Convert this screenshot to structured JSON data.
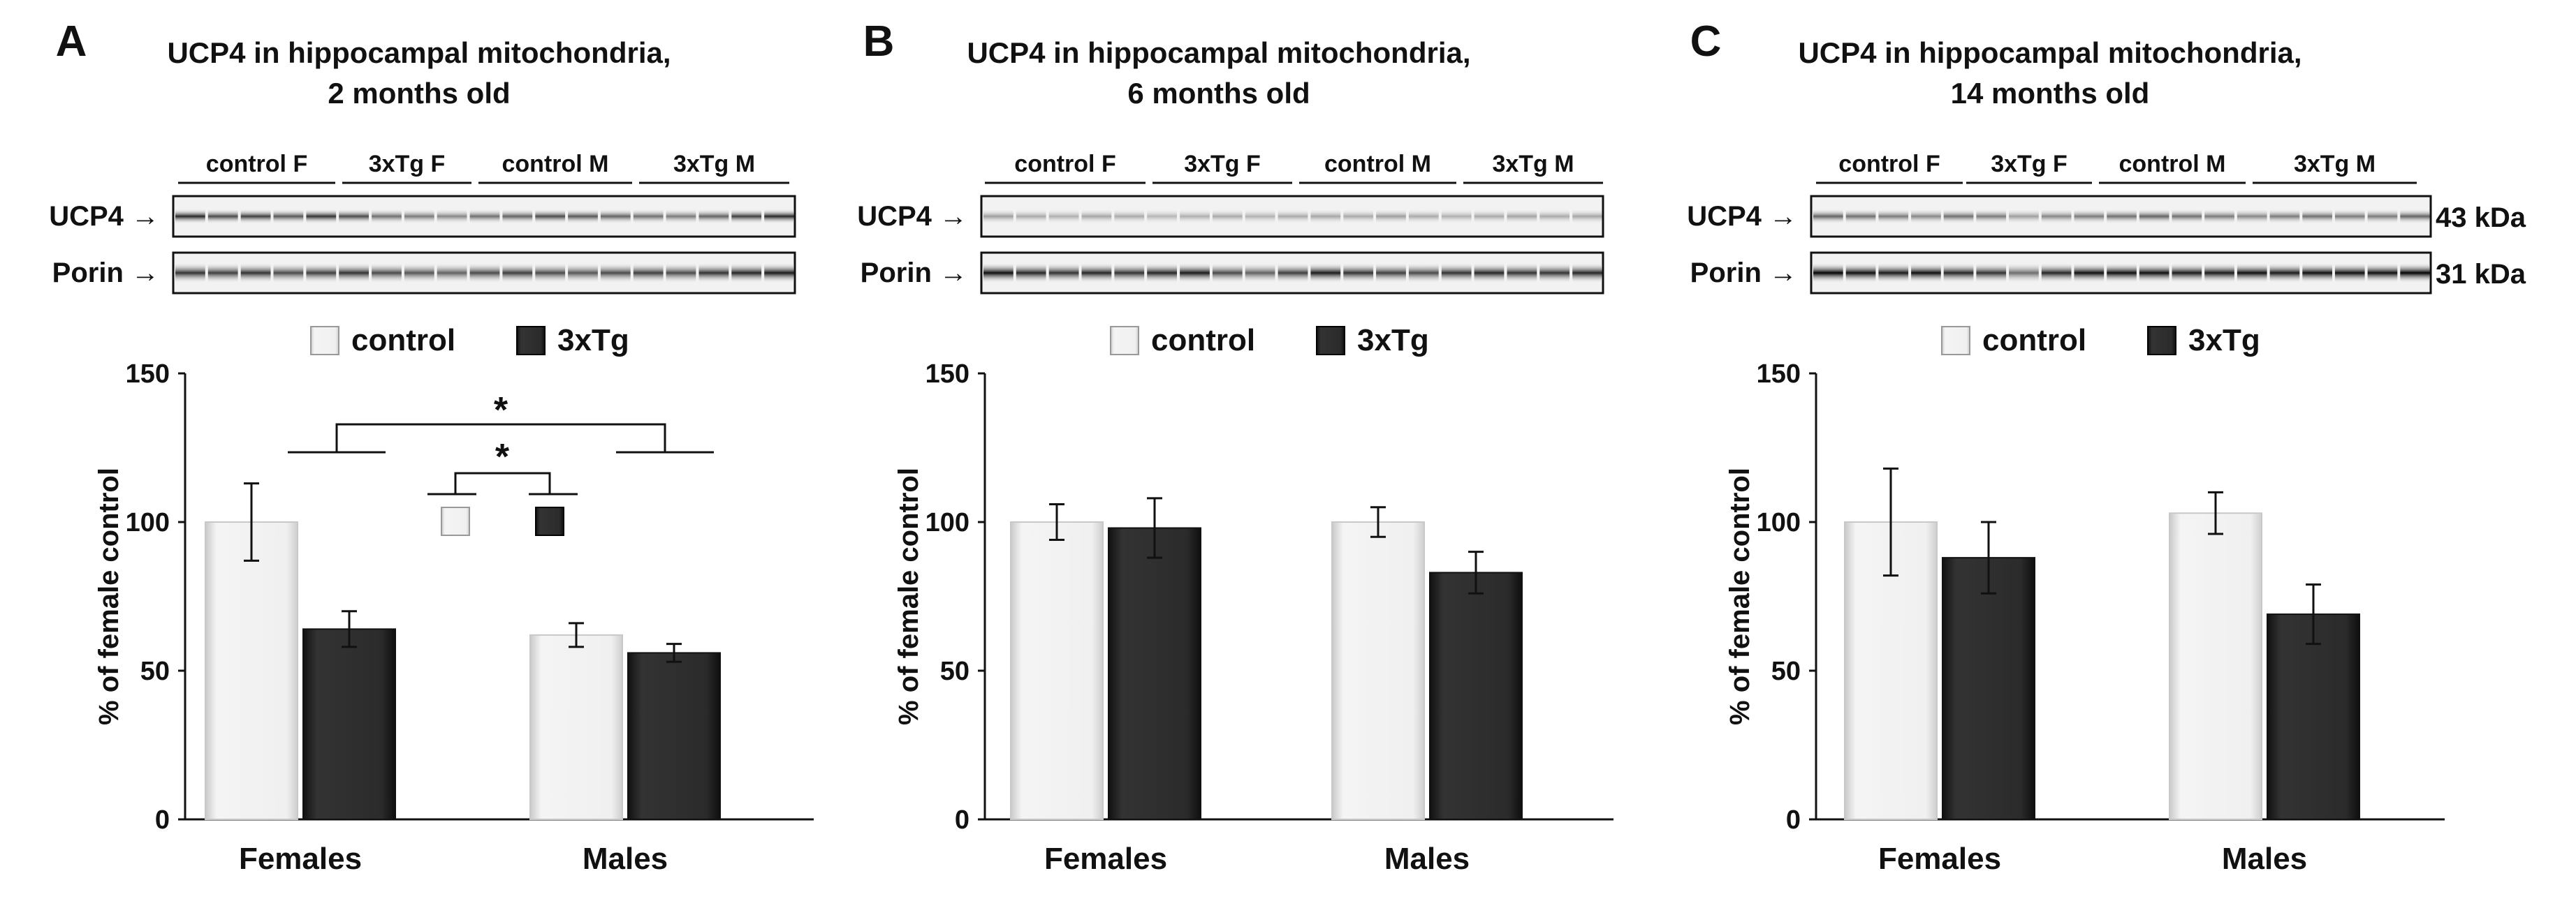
{
  "figure": {
    "blot": {
      "group_labels": [
        "control F",
        "3xTg F",
        "control M",
        "3xTg M"
      ],
      "row_labels": [
        {
          "name": "UCP4",
          "arrow": "→"
        },
        {
          "name": "Porin",
          "arrow": "→"
        }
      ],
      "kda_labels": [
        "43 kDa",
        "31 kDa"
      ]
    },
    "legend": {
      "control": "control",
      "tg": "3xTg"
    },
    "colors": {
      "control": "#e6e6e6",
      "tg": "#262626",
      "axis": "#111111",
      "band": "#222222"
    }
  },
  "chart_data": [
    {
      "type": "bar",
      "panel": "A",
      "title": [
        "UCP4 in hippocampal mitochondria,",
        "2 months old"
      ],
      "categories": [
        "Females",
        "Males"
      ],
      "series": [
        {
          "name": "control",
          "values": [
            100,
            62
          ],
          "errors": [
            13,
            4
          ]
        },
        {
          "name": "3xTg",
          "values": [
            64,
            56
          ],
          "errors": [
            6,
            3
          ]
        }
      ],
      "ylabel": "% of female control",
      "ylim": [
        0,
        150
      ],
      "yticks": [
        0,
        50,
        100,
        150
      ],
      "significance": [
        {
          "label": "*",
          "between": "Females vs Males"
        },
        {
          "label": "*",
          "between": "control vs 3xTg"
        }
      ]
    },
    {
      "type": "bar",
      "panel": "B",
      "title": [
        "UCP4 in hippocampal mitochondria,",
        "6 months old"
      ],
      "categories": [
        "Females",
        "Males"
      ],
      "series": [
        {
          "name": "control",
          "values": [
            100,
            100
          ],
          "errors": [
            6,
            5
          ]
        },
        {
          "name": "3xTg",
          "values": [
            98,
            83
          ],
          "errors": [
            10,
            7
          ]
        }
      ],
      "ylabel": "% of female control",
      "ylim": [
        0,
        150
      ],
      "yticks": [
        0,
        50,
        100,
        150
      ]
    },
    {
      "type": "bar",
      "panel": "C",
      "title": [
        "UCP4 in hippocampal mitochondria,",
        "14 months old"
      ],
      "categories": [
        "Females",
        "Males"
      ],
      "series": [
        {
          "name": "control",
          "values": [
            100,
            103
          ],
          "errors": [
            18,
            7
          ]
        },
        {
          "name": "3xTg",
          "values": [
            88,
            69
          ],
          "errors": [
            12,
            10
          ]
        }
      ],
      "ylabel": "% of female control",
      "ylim": [
        0,
        150
      ],
      "yticks": [
        0,
        50,
        100,
        150
      ]
    }
  ]
}
